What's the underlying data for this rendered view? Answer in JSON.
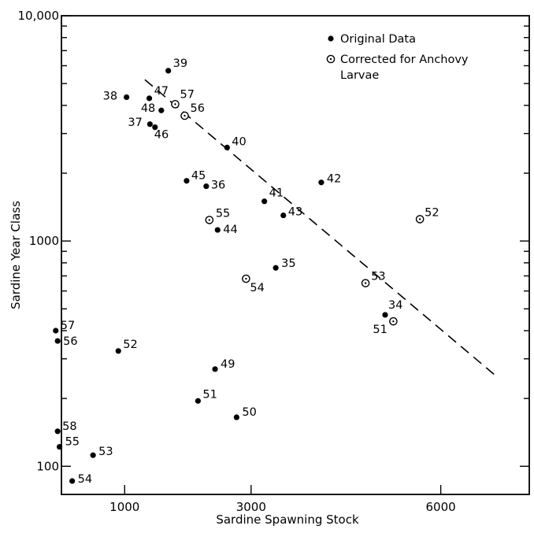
{
  "chart_data": {
    "type": "scatter",
    "title": "",
    "xlabel": "Sardine Spawning Stock",
    "ylabel": "Sardine Year Class",
    "x_scale": "linear",
    "y_scale": "log",
    "xlim": [
      0,
      7400
    ],
    "ylim": [
      75,
      10000
    ],
    "x_ticks": [
      1000,
      3000,
      6000
    ],
    "x_tick_labels": [
      "1000",
      "3000",
      "6000"
    ],
    "y_ticks": [
      100,
      1000,
      10000
    ],
    "y_tick_labels": [
      "100",
      "1000",
      "10,000"
    ],
    "grid": false,
    "legend_position": "top-right",
    "series": [
      {
        "name": "Original Data",
        "marker": "filled-circle",
        "points": [
          {
            "x": 1030,
            "y": 4350,
            "label": "38"
          },
          {
            "x": 1690,
            "y": 5700,
            "label": "39"
          },
          {
            "x": 1390,
            "y": 4300,
            "label": "47"
          },
          {
            "x": 1580,
            "y": 3800,
            "label": "48"
          },
          {
            "x": 1400,
            "y": 3300,
            "label": "37"
          },
          {
            "x": 1480,
            "y": 3200,
            "label": "46"
          },
          {
            "x": 2620,
            "y": 2600,
            "label": "40"
          },
          {
            "x": 1980,
            "y": 1850,
            "label": "45"
          },
          {
            "x": 2290,
            "y": 1750,
            "label": "36"
          },
          {
            "x": 3210,
            "y": 1500,
            "label": "41"
          },
          {
            "x": 4110,
            "y": 1820,
            "label": "42"
          },
          {
            "x": 3510,
            "y": 1300,
            "label": "43"
          },
          {
            "x": 2470,
            "y": 1120,
            "label": "44"
          },
          {
            "x": 3390,
            "y": 760,
            "label": "35"
          },
          {
            "x": 5120,
            "y": 470,
            "label": "34"
          },
          {
            "x": -90,
            "y": 400,
            "label": "57"
          },
          {
            "x": -60,
            "y": 360,
            "label": "56"
          },
          {
            "x": 900,
            "y": 325,
            "label": "52"
          },
          {
            "x": 2430,
            "y": 270,
            "label": "49"
          },
          {
            "x": 2160,
            "y": 195,
            "label": "51"
          },
          {
            "x": 2770,
            "y": 165,
            "label": "50"
          },
          {
            "x": -60,
            "y": 143,
            "label": "58"
          },
          {
            "x": -30,
            "y": 122,
            "label": "55"
          },
          {
            "x": 500,
            "y": 112,
            "label": "53"
          },
          {
            "x": 170,
            "y": 86,
            "label": "54"
          }
        ]
      },
      {
        "name": "Corrected for Anchovy Larvae",
        "marker": "open-circle-dot",
        "points": [
          {
            "x": 1800,
            "y": 4050,
            "label": "57"
          },
          {
            "x": 1950,
            "y": 3600,
            "label": "56"
          },
          {
            "x": 2340,
            "y": 1240,
            "label": "55"
          },
          {
            "x": 5670,
            "y": 1250,
            "label": "52"
          },
          {
            "x": 2920,
            "y": 680,
            "label": "54"
          },
          {
            "x": 4810,
            "y": 650,
            "label": "53"
          },
          {
            "x": 5250,
            "y": 440,
            "label": "51"
          }
        ]
      }
    ],
    "fit_line": {
      "style": "dashed",
      "from": {
        "x": 1320,
        "y": 5200
      },
      "to": {
        "x": 6850,
        "y": 255
      }
    }
  }
}
